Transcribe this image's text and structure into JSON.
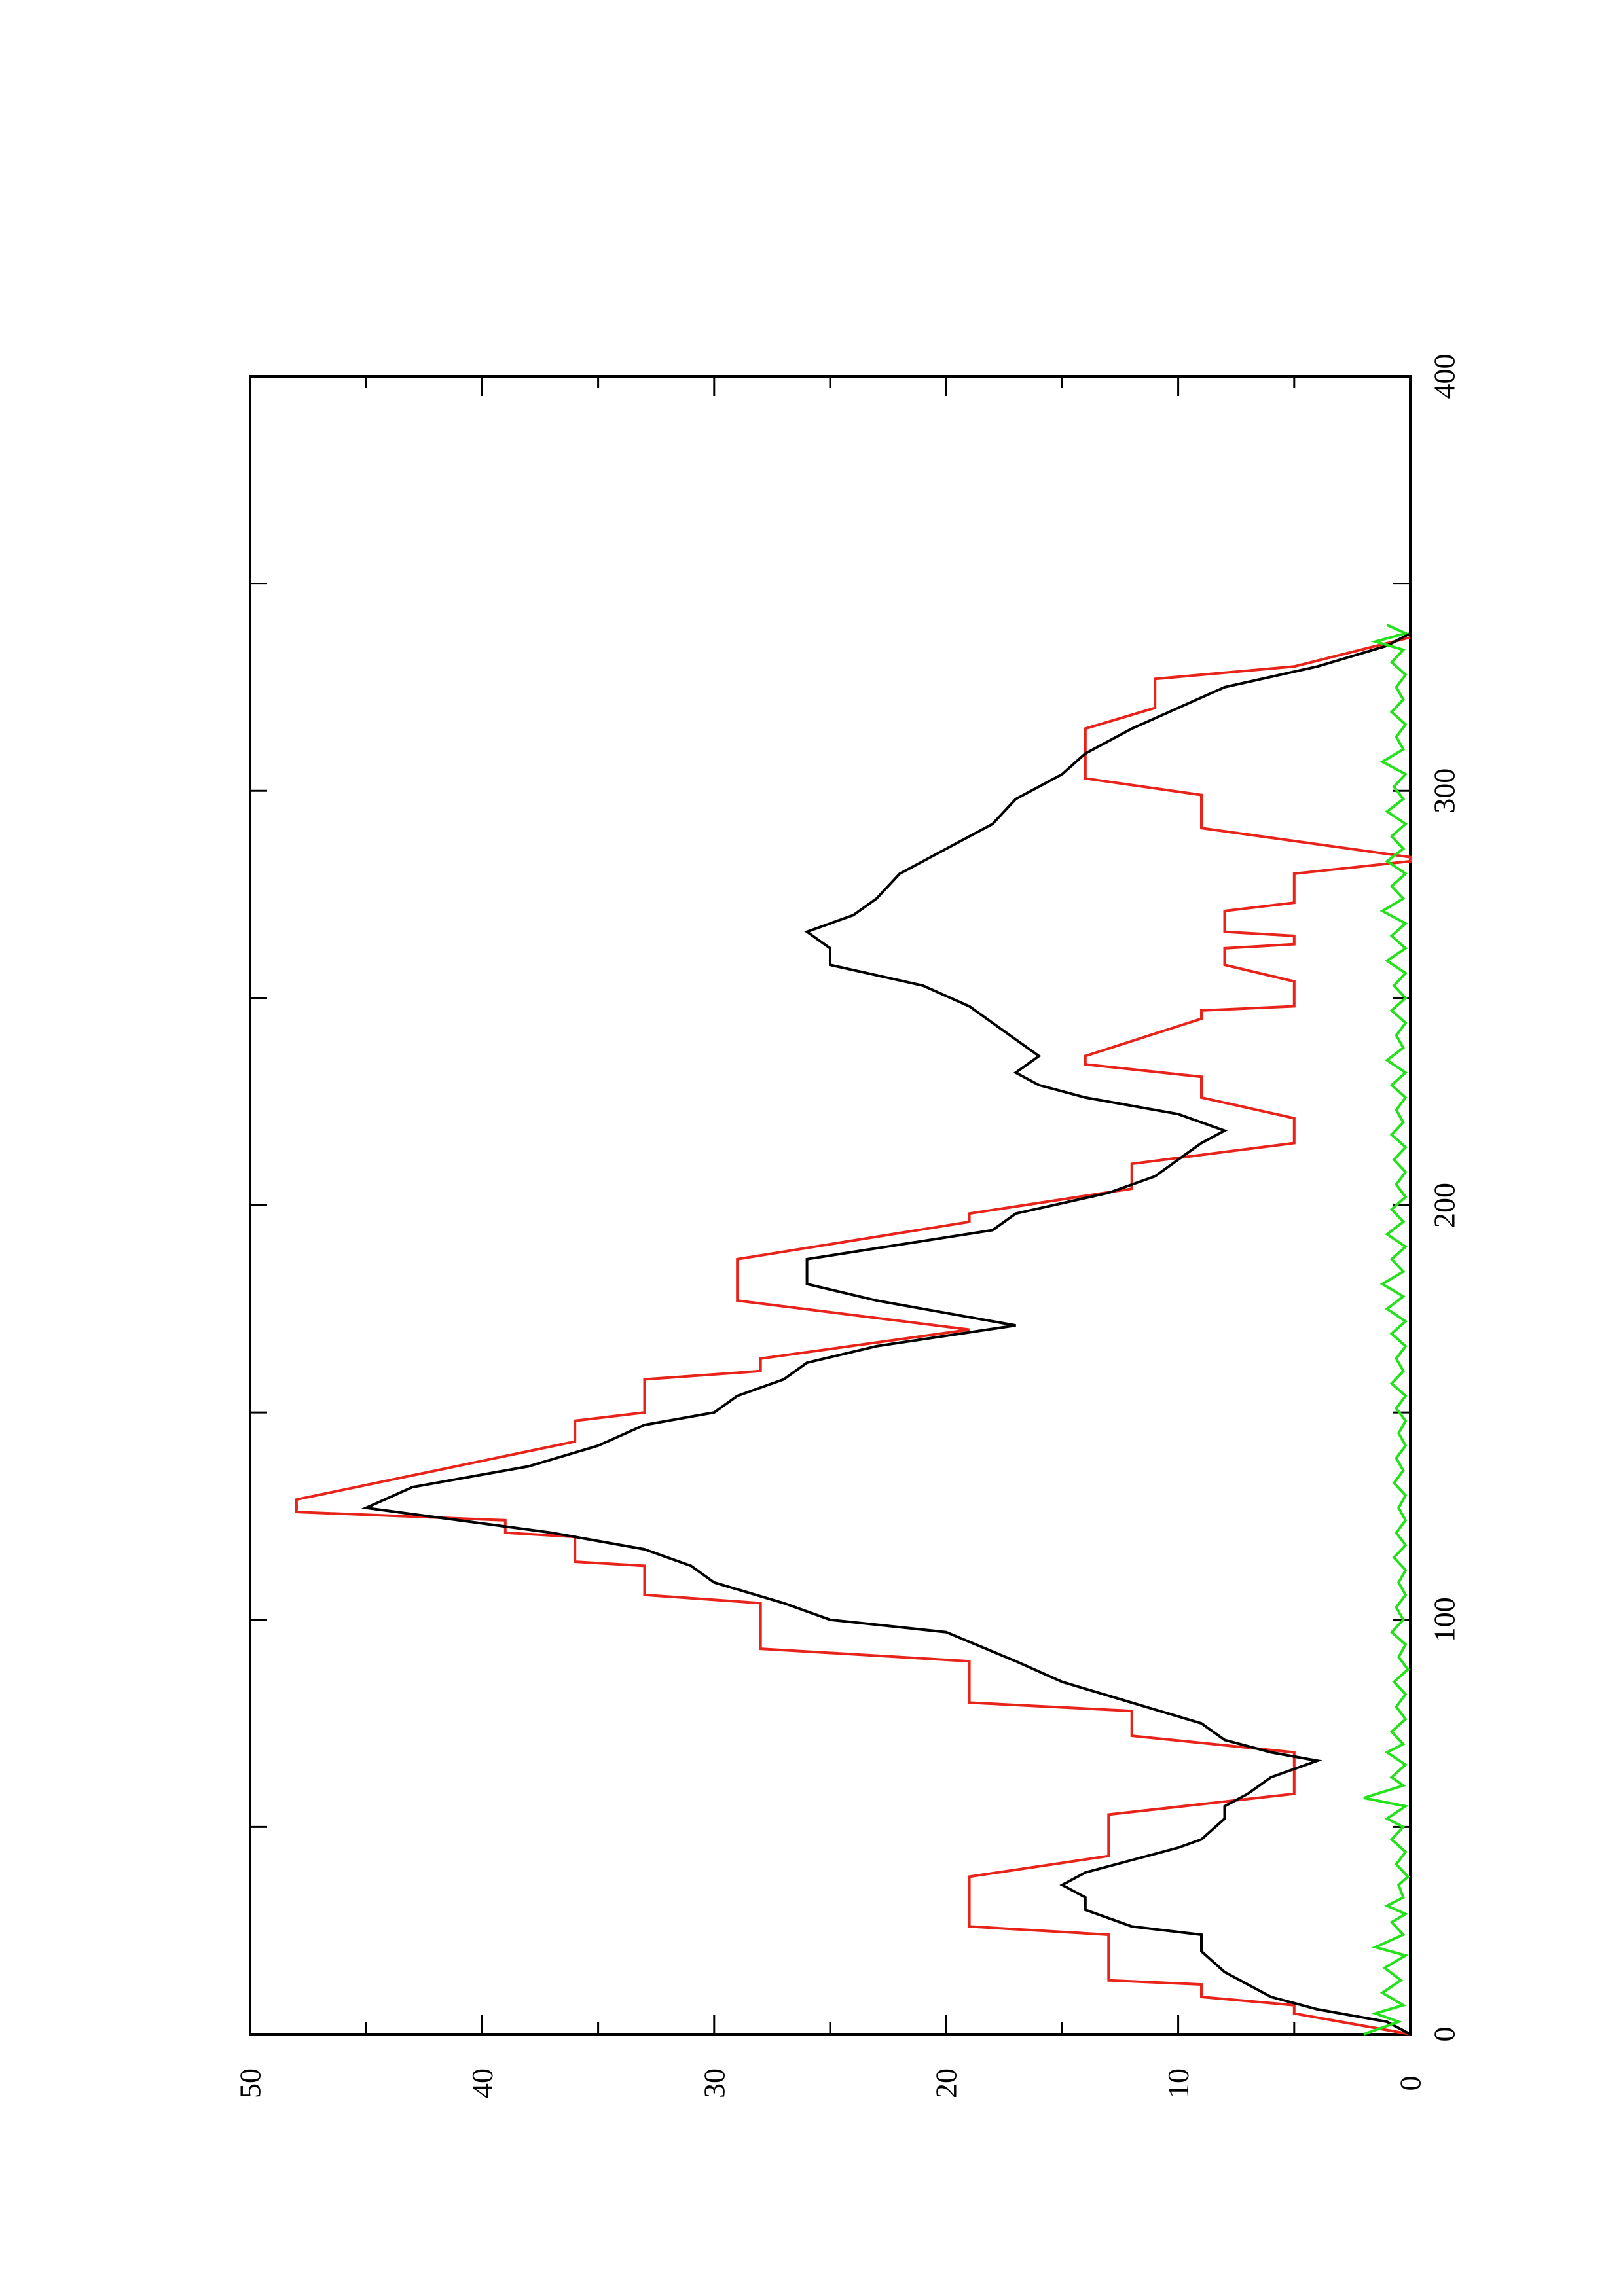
{
  "chart_data": {
    "type": "line",
    "orientation": "rotated-90-ccw",
    "title": "",
    "xlabel": "",
    "ylabel": "",
    "xlim": [
      0,
      400
    ],
    "ylim": [
      0,
      50
    ],
    "x_ticks": [
      "0",
      "100",
      "200",
      "300",
      "400"
    ],
    "y_ticks": [
      "0",
      "10",
      "20",
      "30",
      "40",
      "50"
    ],
    "grid": false,
    "legend": "none",
    "series": [
      {
        "color": "#e8231a",
        "points": [
          [
            0,
            0
          ],
          [
            5,
            5
          ],
          [
            7,
            5
          ],
          [
            9,
            9
          ],
          [
            12,
            9
          ],
          [
            13,
            13
          ],
          [
            24,
            13
          ],
          [
            26,
            19
          ],
          [
            38,
            19
          ],
          [
            43,
            13
          ],
          [
            53,
            13
          ],
          [
            58,
            5
          ],
          [
            68,
            5
          ],
          [
            72,
            12
          ],
          [
            78,
            12
          ],
          [
            80,
            19
          ],
          [
            90,
            19
          ],
          [
            93,
            28
          ],
          [
            104,
            28
          ],
          [
            106,
            33
          ],
          [
            113,
            33
          ],
          [
            114,
            36
          ],
          [
            120,
            36
          ],
          [
            121,
            39
          ],
          [
            124,
            39
          ],
          [
            126,
            48
          ],
          [
            129,
            48
          ],
          [
            143,
            36
          ],
          [
            148,
            36
          ],
          [
            150,
            33
          ],
          [
            158,
            33
          ],
          [
            160,
            28
          ],
          [
            163,
            28
          ],
          [
            170,
            19
          ],
          [
            177,
            29
          ],
          [
            187,
            29
          ],
          [
            196,
            19
          ],
          [
            198,
            19
          ],
          [
            204,
            12
          ],
          [
            210,
            12
          ],
          [
            215,
            5
          ],
          [
            221,
            5
          ],
          [
            226,
            9
          ],
          [
            231,
            9
          ],
          [
            234,
            14
          ],
          [
            236,
            14
          ],
          [
            245,
            9
          ],
          [
            247,
            9
          ],
          [
            248,
            5
          ],
          [
            254,
            5
          ],
          [
            258,
            8
          ],
          [
            262,
            8
          ],
          [
            263,
            5
          ],
          [
            265,
            5
          ],
          [
            266,
            8
          ],
          [
            271,
            8
          ],
          [
            273,
            5
          ],
          [
            280,
            5
          ],
          [
            283,
            0
          ],
          [
            284,
            0
          ],
          [
            291,
            9
          ],
          [
            299,
            9
          ],
          [
            303,
            14
          ],
          [
            315,
            14
          ],
          [
            320,
            11
          ],
          [
            327,
            11
          ],
          [
            330,
            5
          ],
          [
            337,
            0
          ]
        ]
      },
      {
        "color": "#000000",
        "points": [
          [
            0,
            0
          ],
          [
            3,
            1
          ],
          [
            6,
            4
          ],
          [
            9,
            6
          ],
          [
            12,
            7
          ],
          [
            15,
            8
          ],
          [
            20,
            9
          ],
          [
            24,
            9
          ],
          [
            26,
            12
          ],
          [
            30,
            14
          ],
          [
            33,
            14
          ],
          [
            36,
            15
          ],
          [
            39,
            14
          ],
          [
            42,
            12
          ],
          [
            45,
            10
          ],
          [
            47,
            9
          ],
          [
            52,
            8
          ],
          [
            55,
            8
          ],
          [
            58,
            7
          ],
          [
            62,
            6
          ],
          [
            66,
            4
          ],
          [
            68,
            6
          ],
          [
            71,
            8
          ],
          [
            75,
            9
          ],
          [
            80,
            12
          ],
          [
            85,
            15
          ],
          [
            90,
            17
          ],
          [
            97,
            20
          ],
          [
            100,
            25
          ],
          [
            104,
            27
          ],
          [
            109,
            30
          ],
          [
            113,
            31
          ],
          [
            117,
            33
          ],
          [
            121,
            37
          ],
          [
            127,
            45
          ],
          [
            132,
            43
          ],
          [
            137,
            38
          ],
          [
            142,
            35
          ],
          [
            147,
            33
          ],
          [
            150,
            30
          ],
          [
            154,
            29
          ],
          [
            158,
            27
          ],
          [
            162,
            26
          ],
          [
            166,
            23
          ],
          [
            171,
            17
          ],
          [
            177,
            23
          ],
          [
            181,
            26
          ],
          [
            187,
            26
          ],
          [
            194,
            18
          ],
          [
            198,
            17
          ],
          [
            203,
            13
          ],
          [
            207,
            11
          ],
          [
            211,
            10
          ],
          [
            215,
            9
          ],
          [
            218,
            8
          ],
          [
            222,
            10
          ],
          [
            226,
            14
          ],
          [
            229,
            16
          ],
          [
            232,
            17
          ],
          [
            236,
            16
          ],
          [
            240,
            17
          ],
          [
            244,
            18
          ],
          [
            248,
            19
          ],
          [
            253,
            21
          ],
          [
            258,
            25
          ],
          [
            262,
            25
          ],
          [
            266,
            26
          ],
          [
            270,
            24
          ],
          [
            274,
            23
          ],
          [
            280,
            22
          ],
          [
            286,
            20
          ],
          [
            292,
            18
          ],
          [
            298,
            17
          ],
          [
            304,
            15
          ],
          [
            309,
            14
          ],
          [
            315,
            12
          ],
          [
            320,
            10
          ],
          [
            325,
            8
          ],
          [
            330,
            4
          ],
          [
            335,
            1
          ],
          [
            338,
            0
          ]
        ]
      },
      {
        "color": "#22e31a",
        "points": [
          [
            0,
            2
          ],
          [
            3,
            0.5
          ],
          [
            5,
            1.5
          ],
          [
            7,
            0.3
          ],
          [
            10,
            1.2
          ],
          [
            13,
            0.4
          ],
          [
            16,
            1.1
          ],
          [
            19,
            0.2
          ],
          [
            21,
            1.5
          ],
          [
            24,
            0.3
          ],
          [
            27,
            0.8
          ],
          [
            29,
            0.2
          ],
          [
            31,
            1.0
          ],
          [
            33,
            0.3
          ],
          [
            36,
            0.5
          ],
          [
            38,
            0.1
          ],
          [
            41,
            0.6
          ],
          [
            44,
            0.2
          ],
          [
            47,
            0.8
          ],
          [
            50,
            0.3
          ],
          [
            52,
            1.0
          ],
          [
            55,
            0.2
          ],
          [
            57,
            2.0
          ],
          [
            60,
            0.3
          ],
          [
            62,
            0.8
          ],
          [
            65,
            0.2
          ],
          [
            68,
            1.0
          ],
          [
            70,
            0.3
          ],
          [
            73,
            0.8
          ],
          [
            76,
            0.2
          ],
          [
            79,
            0.6
          ],
          [
            82,
            0.2
          ],
          [
            85,
            0.7
          ],
          [
            88,
            0.1
          ],
          [
            91,
            0.5
          ],
          [
            94,
            0.2
          ],
          [
            97,
            0.8
          ],
          [
            100,
            0.3
          ],
          [
            103,
            0.6
          ],
          [
            106,
            0.2
          ],
          [
            109,
            0.5
          ],
          [
            112,
            0.2
          ],
          [
            115,
            0.7
          ],
          [
            118,
            0.2
          ],
          [
            121,
            0.6
          ],
          [
            124,
            0.2
          ],
          [
            127,
            0.5
          ],
          [
            130,
            0.2
          ],
          [
            133,
            0.7
          ],
          [
            136,
            0.3
          ],
          [
            139,
            0.6
          ],
          [
            142,
            0.2
          ],
          [
            145,
            0.5
          ],
          [
            148,
            0.2
          ],
          [
            151,
            0.6
          ],
          [
            154,
            0.2
          ],
          [
            157,
            0.8
          ],
          [
            160,
            0.3
          ],
          [
            163,
            0.6
          ],
          [
            166,
            0.2
          ],
          [
            169,
            0.8
          ],
          [
            172,
            0.2
          ],
          [
            175,
            1.0
          ],
          [
            178,
            0.3
          ],
          [
            181,
            1.2
          ],
          [
            184,
            0.3
          ],
          [
            187,
            0.8
          ],
          [
            190,
            0.2
          ],
          [
            193,
            1.0
          ],
          [
            196,
            0.3
          ],
          [
            199,
            0.8
          ],
          [
            202,
            0.2
          ],
          [
            205,
            0.6
          ],
          [
            208,
            0.2
          ],
          [
            211,
            0.7
          ],
          [
            214,
            0.2
          ],
          [
            217,
            0.8
          ],
          [
            220,
            0.3
          ],
          [
            223,
            0.6
          ],
          [
            226,
            0.2
          ],
          [
            229,
            0.8
          ],
          [
            232,
            0.2
          ],
          [
            235,
            1.0
          ],
          [
            238,
            0.3
          ],
          [
            241,
            0.6
          ],
          [
            244,
            0.2
          ],
          [
            247,
            0.8
          ],
          [
            250,
            0.2
          ],
          [
            253,
            0.7
          ],
          [
            256,
            0.2
          ],
          [
            259,
            1.0
          ],
          [
            262,
            0.2
          ],
          [
            265,
            0.8
          ],
          [
            268,
            0.2
          ],
          [
            271,
            1.2
          ],
          [
            274,
            0.3
          ],
          [
            277,
            0.8
          ],
          [
            280,
            0.2
          ],
          [
            283,
            1.0
          ],
          [
            286,
            0.3
          ],
          [
            289,
            0.8
          ],
          [
            292,
            0.2
          ],
          [
            295,
            1.0
          ],
          [
            298,
            0.3
          ],
          [
            301,
            0.7
          ],
          [
            304,
            0.2
          ],
          [
            307,
            1.2
          ],
          [
            310,
            0.3
          ],
          [
            313,
            0.6
          ],
          [
            316,
            0.2
          ],
          [
            319,
            0.8
          ],
          [
            322,
            0.3
          ],
          [
            325,
            0.6
          ],
          [
            328,
            0.2
          ],
          [
            331,
            0.8
          ],
          [
            334,
            0.3
          ],
          [
            336,
            1.5
          ],
          [
            338,
            0.2
          ],
          [
            340,
            1.0
          ]
        ]
      }
    ]
  }
}
